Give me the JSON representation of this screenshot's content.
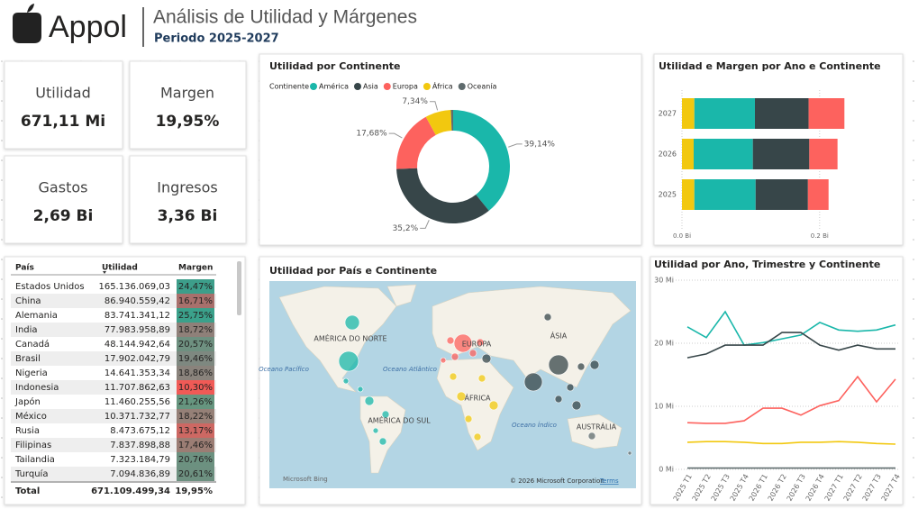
{
  "header": {
    "logo": "Appol",
    "title": "Análisis de Utilidad y Márgenes",
    "subtitle": "Periodo 2025-2027"
  },
  "kpis": [
    {
      "label": "Utilidad",
      "value": "671,11 Mi"
    },
    {
      "label": "Margen",
      "value": "19,95%"
    },
    {
      "label": "Gastos",
      "value": "2,69 Bi"
    },
    {
      "label": "Ingresos",
      "value": "3,36 Bi"
    }
  ],
  "table": {
    "headers": [
      "País",
      "Utilidad",
      "Margen"
    ],
    "rows": [
      [
        "Estados Unidos",
        "165.136.069,03",
        "24,47%"
      ],
      [
        "China",
        "86.940.559,42",
        "16,71%"
      ],
      [
        "Alemania",
        "83.741.341,12",
        "25,75%"
      ],
      [
        "India",
        "77.983.958,89",
        "18,72%"
      ],
      [
        "Canadá",
        "48.144.942,64",
        "20,57%"
      ],
      [
        "Brasil",
        "17.902.042,79",
        "19,46%"
      ],
      [
        "Nigeria",
        "14.641.353,34",
        "18,86%"
      ],
      [
        "Indonesia",
        "11.707.862,63",
        "10,30%"
      ],
      [
        "Japón",
        "11.460.255,56",
        "21,26%"
      ],
      [
        "México",
        "10.371.732,77",
        "18,22%"
      ],
      [
        "Rusia",
        "8.473.675,12",
        "13,17%"
      ],
      [
        "Filipinas",
        "7.837.898,88",
        "17,46%"
      ],
      [
        "Tailandia",
        "7.323.184,79",
        "20,76%"
      ],
      [
        "Turquía",
        "7.094.836,89",
        "20,61%"
      ]
    ],
    "total": [
      "Total",
      "671.109.499,34",
      "19,95%"
    ],
    "colors": [
      "#3d9e8a",
      "#a8706c",
      "#3ba18b",
      "#8f8079",
      "#6e9080",
      "#7e8880",
      "#8a837c",
      "#f05a56",
      "#66957f",
      "#958077",
      "#cd6863",
      "#9b7d74",
      "#6c9180",
      "#6d9080"
    ]
  },
  "map": {
    "title": "Utilidad por País e Continente",
    "labels": [
      "AMÉRICA DO NORTE",
      "Oceano Pacífico",
      "Oceano Atlântico",
      "EUROPA",
      "ÁSIA",
      "ÁFRICA",
      "AMÉRICA DO SUL",
      "Oceano Índico",
      "AUSTRÁLIA"
    ],
    "attribution": "Microsoft Bing",
    "copyright": "© 2026 Microsoft Corporation",
    "terms": "Terms"
  },
  "chart_data": [
    {
      "type": "donut",
      "title": "Utilidad por Continente",
      "legend_title": "Continente",
      "categories": [
        "América",
        "Asia",
        "Europa",
        "África",
        "Oceanía"
      ],
      "values": [
        39.14,
        35.2,
        17.68,
        7.34,
        0.64
      ],
      "value_labels": [
        "39,14%",
        "35,2%",
        "17,68%",
        "7,34%",
        null
      ],
      "colors": [
        "#1ab7aa",
        "#374649",
        "#fd625e",
        "#f2c80f",
        "#5f6b6d"
      ]
    },
    {
      "type": "hbar-stacked",
      "title": "Utilidad e Margen por Ano e Continente",
      "categories": [
        "2025",
        "2026",
        "2027"
      ],
      "series": [
        {
          "color": "#f2c80f",
          "values": [
            0.018,
            0.017,
            0.018
          ]
        },
        {
          "color": "#1ab7aa",
          "values": [
            0.089,
            0.086,
            0.088
          ]
        },
        {
          "color": "#374649",
          "values": [
            0.076,
            0.082,
            0.078
          ]
        },
        {
          "color": "#fd625e",
          "values": [
            0.03,
            0.041,
            0.052
          ]
        }
      ],
      "xlim": [
        0,
        0.25
      ],
      "xticks": [
        {
          "value": 0,
          "label": "0.0 Bi"
        },
        {
          "value": 0.2,
          "label": "0.2 Bi"
        }
      ]
    },
    {
      "type": "line",
      "title": "Utilidad por Ano, Trimestre y Continente",
      "categories": [
        "2025 T1",
        "2025 T2",
        "2025 T3",
        "2025 T4",
        "2026 T1",
        "2026 T2",
        "2026 T3",
        "2026 T4",
        "2027 T1",
        "2027 T2",
        "2027 T3",
        "2027 T4"
      ],
      "series": [
        {
          "color": "#1ab7aa",
          "values": [
            22.6,
            20.9,
            25.0,
            19.7,
            20.1,
            20.7,
            21.3,
            23.3,
            22.1,
            21.9,
            22.1,
            22.9
          ]
        },
        {
          "color": "#374649",
          "values": [
            17.7,
            18.3,
            19.7,
            19.7,
            19.7,
            21.7,
            21.7,
            19.7,
            18.9,
            19.7,
            19.1,
            19.1
          ]
        },
        {
          "color": "#fd625e",
          "values": [
            7.4,
            7.3,
            7.3,
            7.7,
            9.7,
            9.7,
            8.6,
            10.1,
            10.9,
            14.7,
            10.7,
            14.3
          ]
        },
        {
          "color": "#f2c80f",
          "values": [
            4.3,
            4.4,
            4.4,
            4.3,
            4.1,
            4.1,
            4.3,
            4.3,
            4.4,
            4.3,
            4.1,
            4.0
          ]
        },
        {
          "color": "#5f6b6d",
          "values": [
            0.2,
            0.2,
            0.2,
            0.2,
            0.2,
            0.2,
            0.2,
            0.2,
            0.2,
            0.2,
            0.2,
            0.2
          ]
        }
      ],
      "ylim": [
        0,
        30
      ],
      "yticks": [
        {
          "value": 0,
          "label": "0 Mi"
        },
        {
          "value": 10,
          "label": "10 Mi"
        },
        {
          "value": 20,
          "label": "20 Mi"
        },
        {
          "value": 30,
          "label": "30 Mi"
        }
      ]
    }
  ]
}
